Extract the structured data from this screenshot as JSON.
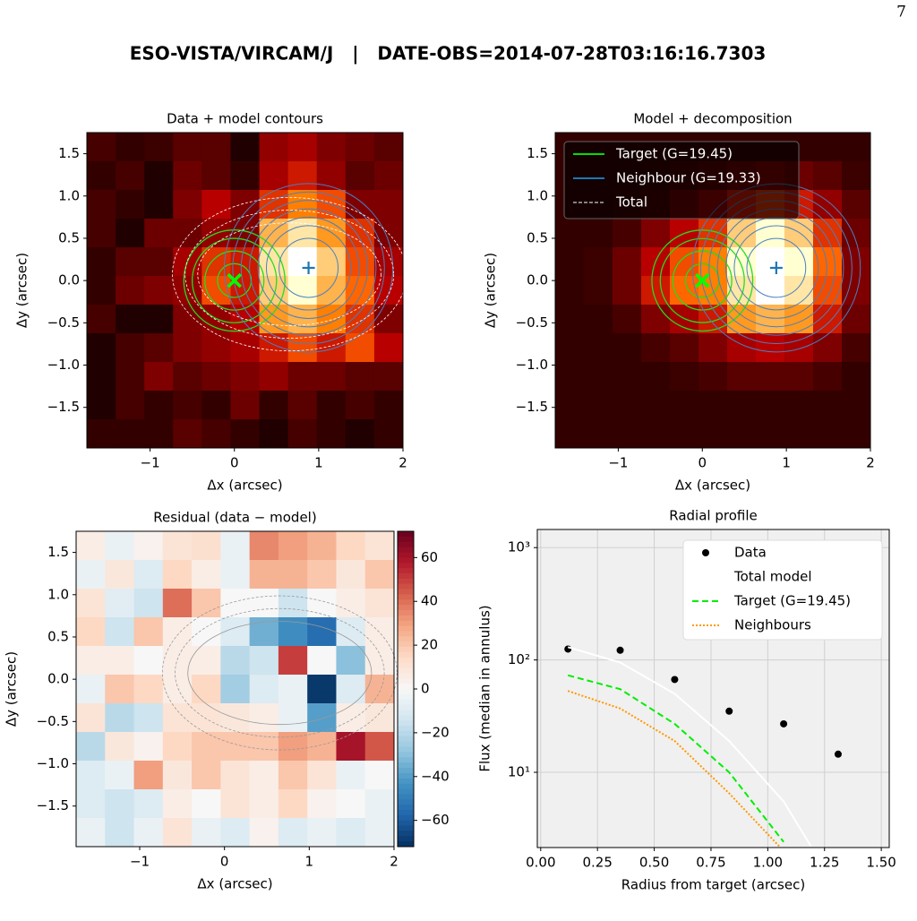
{
  "header": {
    "page_number": "7",
    "title": "ESO-VISTA/VIRCAM/J   |   DATE-OBS=2014-07-28T03:16:16.7303"
  },
  "chart_data": [
    {
      "type": "heatmap",
      "title": "Data + model contours",
      "x_label": "Δx (arcsec)",
      "y_label": "Δy (arcsec)",
      "colormap": "heat",
      "xlim": [
        -1.75,
        2.0
      ],
      "ylim": [
        -1.98,
        1.75
      ],
      "xticks": [
        {
          "value": -1,
          "label": "−1"
        },
        0,
        1,
        2
      ],
      "yticks": [
        {
          "value": -1.5,
          "label": "−1.5"
        },
        {
          "value": -1,
          "label": "−1.0"
        },
        {
          "value": -0.5,
          "label": "−0.5"
        },
        {
          "value": 0,
          "label": "0.0"
        },
        0.5,
        {
          "value": 1,
          "label": "1.0"
        },
        1.5
      ],
      "target": {
        "x": 0,
        "y": 0
      },
      "neighbour": {
        "x": 0.88,
        "y": 0.15
      },
      "values": [
        [
          0.15,
          0.1,
          0.12,
          0.2,
          0.2,
          0.05,
          0.35,
          0.4,
          0.3,
          0.25,
          0.2
        ],
        [
          0.1,
          0.15,
          0.05,
          0.25,
          0.2,
          0.1,
          0.4,
          0.5,
          0.35,
          0.2,
          0.25
        ],
        [
          0.15,
          0.1,
          0.05,
          0.3,
          0.45,
          0.3,
          0.55,
          0.7,
          0.6,
          0.3,
          0.3
        ],
        [
          0.15,
          0.05,
          0.25,
          0.25,
          0.35,
          0.3,
          0.8,
          0.9,
          0.75,
          0.55,
          0.3
        ],
        [
          0.1,
          0.2,
          0.2,
          0.4,
          0.55,
          0.5,
          0.9,
          1.0,
          0.85,
          0.6,
          0.4
        ],
        [
          0.1,
          0.25,
          0.3,
          0.35,
          0.6,
          0.5,
          0.85,
          0.95,
          0.8,
          0.65,
          0.45
        ],
        [
          0.15,
          0.05,
          0.05,
          0.3,
          0.35,
          0.45,
          0.75,
          0.8,
          0.7,
          0.55,
          0.3
        ],
        [
          0.05,
          0.15,
          0.2,
          0.3,
          0.35,
          0.4,
          0.5,
          0.6,
          0.5,
          0.6,
          0.45
        ],
        [
          0.05,
          0.15,
          0.3,
          0.2,
          0.25,
          0.3,
          0.35,
          0.25,
          0.25,
          0.2,
          0.2
        ],
        [
          0.05,
          0.15,
          0.1,
          0.15,
          0.1,
          0.25,
          0.1,
          0.2,
          0.1,
          0.15,
          0.1
        ],
        [
          0.1,
          0.1,
          0.1,
          0.2,
          0.15,
          0.1,
          0.05,
          0.15,
          0.1,
          0.05,
          0.1
        ]
      ]
    },
    {
      "type": "heatmap",
      "title": "Model + decomposition",
      "x_label": "Δx (arcsec)",
      "y_label": "Δy (arcsec)",
      "colormap": "heat",
      "xlim": [
        -1.75,
        2.0
      ],
      "ylim": [
        -1.98,
        1.75
      ],
      "xticks": [
        {
          "value": -1,
          "label": "−1"
        },
        0,
        1,
        2
      ],
      "yticks": [
        {
          "value": -1.5,
          "label": "−1.5"
        },
        {
          "value": -1,
          "label": "−1.0"
        },
        {
          "value": -0.5,
          "label": "−0.5"
        },
        {
          "value": 0,
          "label": "0.0"
        },
        0.5,
        {
          "value": 1,
          "label": "1.0"
        },
        1.5
      ],
      "target": {
        "x": 0,
        "y": 0
      },
      "neighbour": {
        "x": 0.88,
        "y": 0.15
      },
      "series": [
        {
          "name": "Target (G=19.45)",
          "color": "#00e000"
        },
        {
          "name": "Neighbour (G=19.33)",
          "color": "#1f77b4"
        },
        {
          "name": "Total",
          "color": "#ffffff"
        }
      ],
      "values": [
        [
          0.1,
          0.1,
          0.1,
          0.1,
          0.1,
          0.1,
          0.1,
          0.1,
          0.1,
          0.1,
          0.1
        ],
        [
          0.1,
          0.1,
          0.1,
          0.12,
          0.15,
          0.2,
          0.25,
          0.3,
          0.25,
          0.2,
          0.12
        ],
        [
          0.1,
          0.1,
          0.12,
          0.15,
          0.25,
          0.35,
          0.5,
          0.55,
          0.5,
          0.35,
          0.2
        ],
        [
          0.1,
          0.1,
          0.15,
          0.3,
          0.45,
          0.55,
          0.85,
          0.95,
          0.85,
          0.55,
          0.25
        ],
        [
          0.1,
          0.12,
          0.25,
          0.45,
          0.6,
          0.7,
          0.95,
          1.0,
          0.95,
          0.65,
          0.3
        ],
        [
          0.1,
          0.12,
          0.25,
          0.5,
          0.65,
          0.7,
          0.9,
          1.0,
          0.9,
          0.6,
          0.3
        ],
        [
          0.1,
          0.1,
          0.15,
          0.3,
          0.4,
          0.5,
          0.75,
          0.8,
          0.75,
          0.5,
          0.25
        ],
        [
          0.1,
          0.1,
          0.1,
          0.15,
          0.2,
          0.3,
          0.4,
          0.45,
          0.4,
          0.3,
          0.15
        ],
        [
          0.1,
          0.1,
          0.1,
          0.1,
          0.12,
          0.15,
          0.2,
          0.2,
          0.2,
          0.15,
          0.1
        ],
        [
          0.1,
          0.1,
          0.1,
          0.1,
          0.1,
          0.1,
          0.1,
          0.1,
          0.1,
          0.1,
          0.1
        ],
        [
          0.1,
          0.1,
          0.1,
          0.1,
          0.1,
          0.1,
          0.1,
          0.1,
          0.1,
          0.1,
          0.1
        ]
      ]
    },
    {
      "type": "heatmap",
      "title": "Residual (data − model)",
      "x_label": "Δx (arcsec)",
      "y_label": "Δy (arcsec)",
      "colormap": "diverging",
      "xlim": [
        -1.75,
        2.0
      ],
      "ylim": [
        -1.98,
        1.75
      ],
      "xticks": [
        {
          "value": -1,
          "label": "−1"
        },
        0,
        1,
        2
      ],
      "yticks": [
        {
          "value": -1.5,
          "label": "−1.5"
        },
        {
          "value": -1,
          "label": "−1.0"
        },
        {
          "value": -0.5,
          "label": "−0.5"
        },
        {
          "value": 0,
          "label": "0.0"
        },
        0.5,
        {
          "value": 1,
          "label": "1.0"
        },
        1.5
      ],
      "clim": [
        -72,
        72
      ],
      "cticks": [
        {
          "value": -60,
          "label": "−60"
        },
        {
          "value": -40,
          "label": "−40"
        },
        {
          "value": -20,
          "label": "−20"
        },
        0,
        20,
        40,
        60
      ],
      "values": [
        [
          5,
          -5,
          3,
          10,
          12,
          -5,
          35,
          30,
          25,
          15,
          10
        ],
        [
          -5,
          8,
          -10,
          15,
          5,
          -5,
          25,
          25,
          20,
          8,
          20
        ],
        [
          10,
          -8,
          -15,
          40,
          20,
          0,
          0,
          -15,
          0,
          5,
          10
        ],
        [
          15,
          -15,
          20,
          5,
          0,
          -10,
          -35,
          -45,
          -55,
          -10,
          5
        ],
        [
          5,
          5,
          0,
          5,
          5,
          -20,
          -15,
          50,
          0,
          -30,
          5
        ],
        [
          -5,
          20,
          15,
          5,
          15,
          -25,
          -10,
          -5,
          -70,
          -10,
          25
        ],
        [
          10,
          -20,
          -15,
          10,
          10,
          8,
          5,
          -5,
          -40,
          5,
          8
        ],
        [
          -20,
          8,
          3,
          15,
          20,
          20,
          20,
          30,
          25,
          60,
          45
        ],
        [
          -10,
          -5,
          30,
          8,
          20,
          10,
          5,
          20,
          10,
          -5,
          0
        ],
        [
          -10,
          -15,
          -10,
          5,
          0,
          10,
          5,
          15,
          3,
          0,
          -5
        ],
        [
          -5,
          -15,
          -5,
          10,
          -5,
          -10,
          3,
          -10,
          -5,
          -10,
          -5
        ]
      ]
    },
    {
      "type": "line",
      "title": "Radial profile",
      "x_label": "Radius from target (arcsec)",
      "y_label": "Flux (median in annulus)",
      "log_y": true,
      "grid": true,
      "xlim": [
        -0.015,
        1.535
      ],
      "ylim": [
        2.14,
        1450
      ],
      "xticks": [
        {
          "value": 0,
          "label": "0.00"
        },
        0.25,
        {
          "value": 0.5,
          "label": "0.50"
        },
        0.75,
        {
          "value": 1,
          "label": "1.00"
        },
        1.25,
        {
          "value": 1.5,
          "label": "1.50"
        }
      ],
      "yticks": [
        {
          "value": 10,
          "label": "10¹"
        },
        {
          "value": 100,
          "label": "10²"
        },
        {
          "value": 1000,
          "label": "10³"
        }
      ],
      "series": [
        {
          "name": "Data",
          "color": "#000000",
          "style": "marker",
          "x": [
            0.12,
            0.35,
            0.59,
            0.83,
            1.07,
            1.31
          ],
          "values": [
            125,
            122,
            67,
            35,
            27,
            14.5
          ]
        },
        {
          "name": "Total model",
          "color": "#ffffff",
          "style": "solid",
          "x": [
            0.12,
            0.35,
            0.59,
            0.83,
            1.07,
            1.19
          ],
          "values": [
            130,
            95,
            50,
            19,
            5.5,
            2.2
          ]
        },
        {
          "name": "Target (G=19.45)",
          "color": "#00ee00",
          "style": "dashed",
          "x": [
            0.12,
            0.35,
            0.59,
            0.83,
            1.07
          ],
          "values": [
            73,
            55,
            27,
            10,
            2.4
          ]
        },
        {
          "name": "Neighbours",
          "color": "#ff9900",
          "style": "dotted",
          "x": [
            0.12,
            0.35,
            0.59,
            0.83,
            1.05
          ],
          "values": [
            53,
            37,
            19,
            6.5,
            2.2
          ]
        }
      ]
    }
  ]
}
